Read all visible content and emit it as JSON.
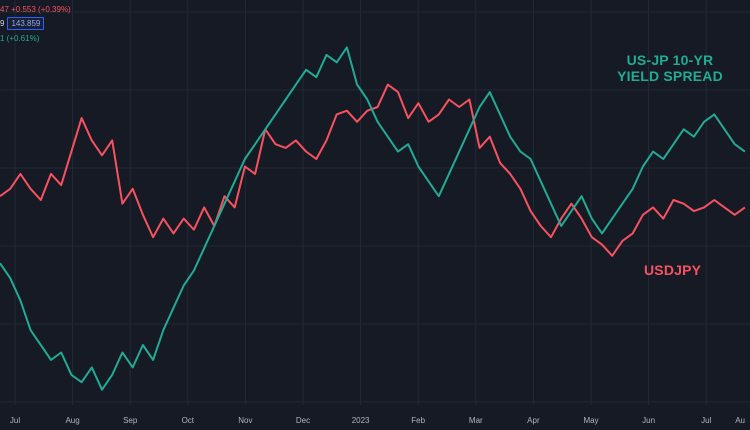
{
  "legend": {
    "row1_text": "47 +0.553 (+0.39%)",
    "row1_color": "#f7525f",
    "row2_prefix": "9",
    "row2_box": "143.859",
    "row2_color": "#d1d4dc",
    "row3_text": "1 (+0.61%)",
    "row3_color": "#22ab94"
  },
  "labels": {
    "spread_line1": "US-JP 10-YR",
    "spread_line2": "YIELD SPREAD",
    "usdjpy": "USDJPY"
  },
  "colors": {
    "background": "#161a25",
    "grid": "#232838",
    "axis_text": "#b2b5be",
    "usdjpy": "#f7525f",
    "spread": "#22ab94"
  },
  "chart_data": {
    "type": "line",
    "x_ticks": [
      "Jul",
      "Aug",
      "Sep",
      "Oct",
      "Nov",
      "Dec",
      "2023",
      "Feb",
      "Mar",
      "Apr",
      "May",
      "Jun",
      "Jul",
      "Au"
    ],
    "x_range": [
      0,
      147
    ],
    "y_range": [
      0,
      100
    ],
    "grid": true,
    "series": [
      {
        "name": "USDJPY",
        "color": "#f7525f",
        "points": [
          [
            0,
            58
          ],
          [
            2,
            60
          ],
          [
            4,
            64
          ],
          [
            6,
            60
          ],
          [
            8,
            57
          ],
          [
            10,
            64
          ],
          [
            12,
            61
          ],
          [
            14,
            70
          ],
          [
            16,
            79
          ],
          [
            18,
            73
          ],
          [
            20,
            69
          ],
          [
            22,
            73
          ],
          [
            24,
            56
          ],
          [
            26,
            60
          ],
          [
            28,
            53
          ],
          [
            30,
            47
          ],
          [
            32,
            52
          ],
          [
            34,
            48
          ],
          [
            36,
            52
          ],
          [
            38,
            49
          ],
          [
            40,
            55
          ],
          [
            42,
            50
          ],
          [
            44,
            58
          ],
          [
            46,
            55
          ],
          [
            48,
            66
          ],
          [
            50,
            64
          ],
          [
            52,
            76
          ],
          [
            54,
            72
          ],
          [
            56,
            71
          ],
          [
            58,
            73
          ],
          [
            60,
            70
          ],
          [
            62,
            68
          ],
          [
            64,
            73
          ],
          [
            66,
            80
          ],
          [
            68,
            81
          ],
          [
            70,
            78
          ],
          [
            72,
            81
          ],
          [
            74,
            82
          ],
          [
            76,
            88
          ],
          [
            78,
            86
          ],
          [
            80,
            79
          ],
          [
            82,
            83
          ],
          [
            84,
            78
          ],
          [
            86,
            80
          ],
          [
            88,
            84
          ],
          [
            90,
            82
          ],
          [
            92,
            84
          ],
          [
            94,
            71
          ],
          [
            96,
            74
          ],
          [
            98,
            67
          ],
          [
            100,
            64
          ],
          [
            102,
            60
          ],
          [
            104,
            54
          ],
          [
            106,
            50
          ],
          [
            108,
            47
          ],
          [
            110,
            52
          ],
          [
            112,
            56
          ],
          [
            114,
            52
          ],
          [
            116,
            47
          ],
          [
            118,
            45
          ],
          [
            120,
            42
          ],
          [
            122,
            46
          ],
          [
            124,
            48
          ],
          [
            126,
            53
          ],
          [
            128,
            55
          ],
          [
            130,
            52
          ],
          [
            132,
            57
          ],
          [
            134,
            56
          ],
          [
            136,
            54
          ],
          [
            138,
            55
          ],
          [
            140,
            57
          ],
          [
            142,
            55
          ],
          [
            144,
            53
          ],
          [
            146,
            55
          ]
        ]
      },
      {
        "name": "US-JP 10-YR YIELD SPREAD",
        "color": "#22ab94",
        "points": [
          [
            0,
            40
          ],
          [
            2,
            36
          ],
          [
            4,
            30
          ],
          [
            6,
            22
          ],
          [
            8,
            18
          ],
          [
            10,
            14
          ],
          [
            12,
            16
          ],
          [
            14,
            10
          ],
          [
            16,
            8
          ],
          [
            18,
            12
          ],
          [
            20,
            6
          ],
          [
            22,
            10
          ],
          [
            24,
            16
          ],
          [
            26,
            12
          ],
          [
            28,
            18
          ],
          [
            30,
            14
          ],
          [
            32,
            22
          ],
          [
            34,
            28
          ],
          [
            36,
            34
          ],
          [
            38,
            38
          ],
          [
            40,
            44
          ],
          [
            42,
            50
          ],
          [
            44,
            56
          ],
          [
            46,
            62
          ],
          [
            48,
            68
          ],
          [
            50,
            72
          ],
          [
            52,
            76
          ],
          [
            54,
            80
          ],
          [
            56,
            84
          ],
          [
            58,
            88
          ],
          [
            60,
            92
          ],
          [
            62,
            90
          ],
          [
            64,
            96
          ],
          [
            66,
            94
          ],
          [
            68,
            98
          ],
          [
            70,
            88
          ],
          [
            72,
            84
          ],
          [
            74,
            78
          ],
          [
            76,
            74
          ],
          [
            78,
            70
          ],
          [
            80,
            72
          ],
          [
            82,
            66
          ],
          [
            84,
            62
          ],
          [
            86,
            58
          ],
          [
            88,
            64
          ],
          [
            90,
            70
          ],
          [
            92,
            76
          ],
          [
            94,
            82
          ],
          [
            96,
            86
          ],
          [
            98,
            80
          ],
          [
            100,
            74
          ],
          [
            102,
            70
          ],
          [
            104,
            68
          ],
          [
            106,
            62
          ],
          [
            108,
            56
          ],
          [
            110,
            50
          ],
          [
            112,
            54
          ],
          [
            114,
            58
          ],
          [
            116,
            52
          ],
          [
            118,
            48
          ],
          [
            120,
            52
          ],
          [
            122,
            56
          ],
          [
            124,
            60
          ],
          [
            126,
            66
          ],
          [
            128,
            70
          ],
          [
            130,
            68
          ],
          [
            132,
            72
          ],
          [
            134,
            76
          ],
          [
            136,
            74
          ],
          [
            138,
            78
          ],
          [
            140,
            80
          ],
          [
            142,
            76
          ],
          [
            144,
            72
          ],
          [
            146,
            70
          ]
        ]
      }
    ]
  }
}
